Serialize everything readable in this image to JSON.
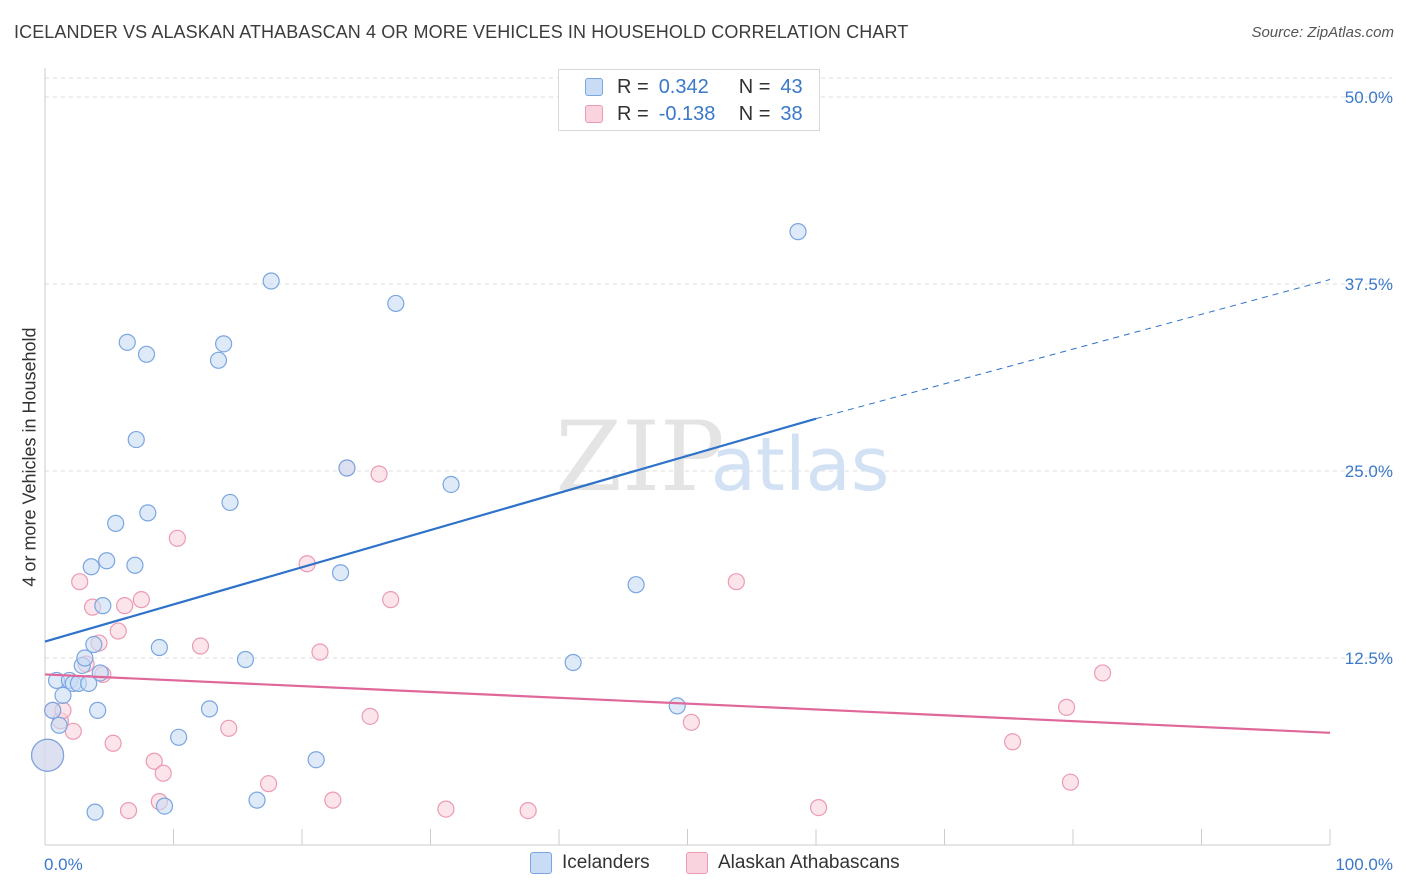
{
  "header": {
    "title": "ICELANDER VS ALASKAN ATHABASCAN 4 OR MORE VEHICLES IN HOUSEHOLD CORRELATION CHART",
    "source": "Source: ZipAtlas.com"
  },
  "watermark": {
    "zip": "ZIP",
    "atlas": "atlas"
  },
  "legend": {
    "rows": [
      {
        "r_label": "R =",
        "r_value": "0.342",
        "n_label": "N =",
        "n_value": "43",
        "color": "#a9c7ee"
      },
      {
        "r_label": "R =",
        "r_value": "-0.138",
        "n_label": "N =",
        "n_value": "38",
        "color": "#f5b8cb"
      }
    ]
  },
  "colors": {
    "icelanders_fill": "#c9dcf5",
    "icelanders_stroke": "#7aa6df",
    "icelanders_line": "#2e72c9",
    "alaskan_fill": "#f9d3de",
    "alaskan_stroke": "#ec9ab3",
    "alaskan_line": "#e0679a",
    "axis_text": "#3a78c9",
    "grid": "#dddddd"
  },
  "chart_data": {
    "type": "scatter",
    "title": "ICELANDER VS ALASKAN ATHABASCAN 4 OR MORE VEHICLES IN HOUSEHOLD CORRELATION CHART",
    "xlabel": "",
    "ylabel": "4 or more Vehicles in Household",
    "xlim": [
      0,
      100
    ],
    "ylim": [
      0,
      50
    ],
    "x_tick_labels": [
      "0.0%",
      "100.0%"
    ],
    "y_tick_values": [
      12.5,
      25.0,
      37.5,
      50.0
    ],
    "y_tick_labels": [
      "12.5%",
      "25.0%",
      "37.5%",
      "50.0%"
    ],
    "grid": true,
    "legend_placement": "bottom-center",
    "series": [
      {
        "name": "Icelanders",
        "r": 0.342,
        "n": 43,
        "trend": {
          "x0": 0,
          "y0": 13.6,
          "x1": 60,
          "y1": 28.5,
          "dashed_to_x": 100,
          "dashed_to_y": 37.8
        },
        "points": [
          [
            0.2,
            6.0,
            "large"
          ],
          [
            0.6,
            9.0
          ],
          [
            0.9,
            11.0
          ],
          [
            1.1,
            8.0
          ],
          [
            1.4,
            10.0
          ],
          [
            1.9,
            11.0
          ],
          [
            2.2,
            10.8
          ],
          [
            2.6,
            10.8
          ],
          [
            2.9,
            12.0
          ],
          [
            3.1,
            12.5
          ],
          [
            3.4,
            10.8
          ],
          [
            3.6,
            18.6
          ],
          [
            3.8,
            13.4
          ],
          [
            3.9,
            2.2
          ],
          [
            4.1,
            9.0
          ],
          [
            4.3,
            11.5
          ],
          [
            4.5,
            16.0
          ],
          [
            4.8,
            19.0
          ],
          [
            5.5,
            21.5
          ],
          [
            6.4,
            33.6
          ],
          [
            7.0,
            18.7
          ],
          [
            7.1,
            27.1
          ],
          [
            7.9,
            32.8
          ],
          [
            8.0,
            22.2
          ],
          [
            8.9,
            13.2
          ],
          [
            9.3,
            2.6
          ],
          [
            10.4,
            7.2
          ],
          [
            12.8,
            9.1
          ],
          [
            13.5,
            32.4
          ],
          [
            13.9,
            33.5
          ],
          [
            14.4,
            22.9
          ],
          [
            15.6,
            12.4
          ],
          [
            16.5,
            3.0
          ],
          [
            17.6,
            37.7
          ],
          [
            21.1,
            5.7
          ],
          [
            23.0,
            18.2
          ],
          [
            23.5,
            25.2
          ],
          [
            27.3,
            36.2
          ],
          [
            31.6,
            24.1
          ],
          [
            41.1,
            12.2
          ],
          [
            46.0,
            17.4
          ],
          [
            49.2,
            9.3
          ],
          [
            58.6,
            41.0
          ]
        ]
      },
      {
        "name": "Alaskan Athabascans",
        "r": -0.138,
        "n": 38,
        "trend": {
          "x0": 0,
          "y0": 11.4,
          "x1": 100,
          "y1": 7.5
        },
        "points": [
          [
            0.2,
            6.0,
            "large"
          ],
          [
            0.6,
            9.0
          ],
          [
            1.2,
            8.3
          ],
          [
            1.4,
            9.0
          ],
          [
            2.2,
            7.6
          ],
          [
            2.7,
            17.6
          ],
          [
            3.2,
            12.1
          ],
          [
            3.7,
            15.9
          ],
          [
            4.2,
            13.5
          ],
          [
            4.5,
            11.4
          ],
          [
            5.3,
            6.8
          ],
          [
            5.7,
            14.3
          ],
          [
            6.2,
            16.0
          ],
          [
            6.5,
            2.3
          ],
          [
            7.5,
            16.4
          ],
          [
            8.5,
            5.6
          ],
          [
            8.9,
            2.9
          ],
          [
            9.2,
            4.8
          ],
          [
            10.3,
            20.5
          ],
          [
            12.1,
            13.3
          ],
          [
            14.3,
            7.8
          ],
          [
            17.4,
            4.1
          ],
          [
            20.4,
            18.8
          ],
          [
            21.4,
            12.9
          ],
          [
            22.4,
            3.0
          ],
          [
            23.5,
            25.2
          ],
          [
            25.3,
            8.6
          ],
          [
            26.0,
            24.8
          ],
          [
            26.9,
            16.4
          ],
          [
            31.2,
            2.4
          ],
          [
            37.6,
            2.3
          ],
          [
            50.3,
            8.2
          ],
          [
            53.8,
            17.6
          ],
          [
            60.2,
            2.5
          ],
          [
            75.3,
            6.9
          ],
          [
            79.5,
            9.2
          ],
          [
            79.8,
            4.2
          ],
          [
            82.3,
            11.5
          ]
        ]
      }
    ]
  }
}
